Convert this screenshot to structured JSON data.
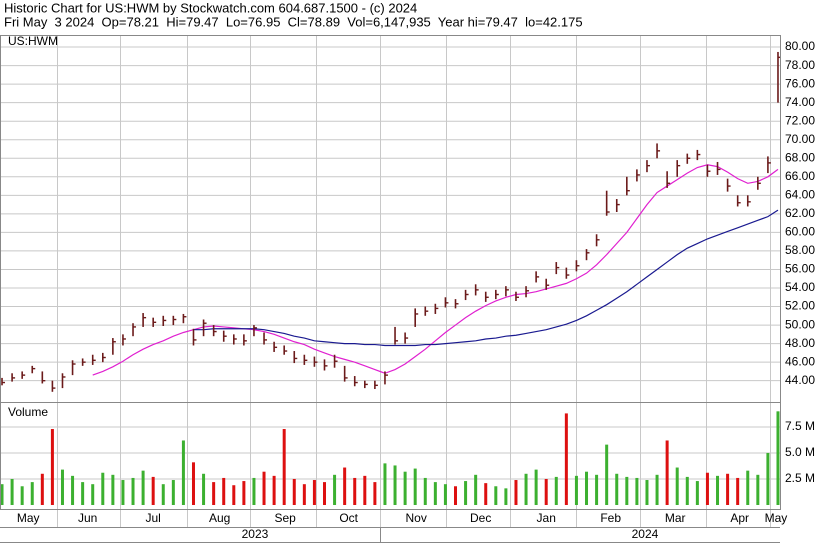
{
  "chart_data": [
    {
      "type": "ohlc",
      "title": "Historic Chart for US:HWM by Stockwatch.com 604.687.1500 - (c) 2024",
      "subtitle": "Fri May  3 2024  Op=78.21  Hi=79.47  Lo=76.95  Cl=78.89  Vol=6,147,935  Year hi=79.47  lo=42.175",
      "label": "US:HWM",
      "color": "#6b1a1a",
      "xlim": [
        -0.2,
        77.2
      ],
      "xgrid": [
        5.5,
        11.7,
        18.4,
        24.6,
        31.2,
        37.5,
        44.1,
        50.4,
        57,
        63.3,
        69.9,
        76.2
      ],
      "ylim": [
        41.7,
        81.3
      ],
      "yticks": [
        {
          "value": 44,
          "label": "44.00"
        },
        {
          "value": 46,
          "label": "46.00"
        },
        {
          "value": 48,
          "label": "48.00"
        },
        {
          "value": 50,
          "label": "50.00"
        },
        {
          "value": 52,
          "label": "52.00"
        },
        {
          "value": 54,
          "label": "54.00"
        },
        {
          "value": 56,
          "label": "56.00"
        },
        {
          "value": 58,
          "label": "58.00"
        },
        {
          "value": 60,
          "label": "60.00"
        },
        {
          "value": 62,
          "label": "62.00"
        },
        {
          "value": 64,
          "label": "64.00"
        },
        {
          "value": 66,
          "label": "66.00"
        },
        {
          "value": 68,
          "label": "68.00"
        },
        {
          "value": 70,
          "label": "70.00"
        },
        {
          "value": 72,
          "label": "72.00"
        },
        {
          "value": 74,
          "label": "74.00"
        },
        {
          "value": 76,
          "label": "76.00"
        },
        {
          "value": 78,
          "label": "78.00"
        },
        {
          "value": 80,
          "label": "80.00"
        }
      ],
      "high": [
        44.3,
        44.8,
        45.0,
        45.6,
        45.0,
        44.0,
        44.8,
        46.2,
        46.4,
        46.8,
        47.0,
        48.6,
        49.0,
        50.2,
        51.3,
        50.8,
        51.0,
        51.0,
        51.2,
        49.6,
        50.6,
        50.0,
        49.4,
        49.0,
        49.0,
        50.0,
        49.2,
        48.2,
        47.8,
        47.2,
        46.8,
        46.6,
        46.3,
        46.8,
        45.6,
        44.5,
        44.0,
        44.0,
        45.0,
        49.8,
        49.2,
        51.8,
        52.0,
        52.3,
        53.0,
        52.8,
        53.8,
        54.4,
        53.6,
        53.8,
        54.2,
        53.6,
        54.2,
        55.8,
        55.0,
        56.8,
        56.2,
        57.0,
        58.2,
        59.8,
        64.5,
        63.6,
        66.0,
        66.8,
        67.8,
        69.6,
        66.6,
        67.8,
        68.5,
        68.9,
        67.3,
        67.6,
        65.8,
        64.0,
        64.0,
        66.0,
        68.2,
        79.47
      ],
      "low": [
        43.5,
        43.9,
        44.2,
        44.8,
        43.7,
        42.8,
        43.2,
        44.6,
        45.6,
        45.7,
        46.0,
        46.8,
        47.8,
        48.8,
        49.8,
        49.8,
        49.9,
        50.0,
        50.2,
        47.8,
        48.8,
        48.8,
        48.2,
        47.9,
        47.8,
        48.8,
        47.9,
        47.1,
        46.8,
        45.9,
        45.7,
        45.5,
        45.1,
        45.4,
        43.9,
        43.4,
        43.2,
        43.1,
        43.6,
        47.9,
        48.0,
        49.8,
        51.0,
        51.2,
        51.9,
        51.8,
        52.7,
        53.2,
        52.5,
        52.8,
        53.1,
        52.6,
        53.0,
        54.6,
        53.8,
        55.5,
        55.0,
        55.8,
        57.0,
        58.5,
        61.8,
        62.2,
        64.0,
        65.5,
        66.5,
        68.0,
        64.8,
        66.0,
        67.4,
        67.8,
        66.0,
        66.2,
        64.4,
        62.8,
        62.8,
        64.6,
        66.4,
        74.0
      ],
      "close": [
        43.8,
        44.3,
        44.6,
        45.3,
        44.0,
        43.2,
        44.4,
        45.8,
        46.0,
        46.2,
        46.5,
        48.2,
        48.5,
        49.8,
        50.8,
        50.3,
        50.5,
        50.6,
        50.9,
        48.4,
        50.2,
        49.3,
        48.8,
        48.5,
        48.3,
        49.7,
        48.4,
        47.6,
        47.2,
        46.4,
        46.2,
        46.0,
        45.6,
        46.1,
        44.3,
        43.8,
        43.6,
        43.5,
        44.6,
        48.3,
        48.6,
        51.2,
        51.5,
        51.8,
        52.4,
        52.3,
        53.3,
        53.8,
        53.0,
        53.3,
        53.8,
        53.0,
        53.7,
        55.2,
        54.3,
        56.2,
        55.4,
        56.4,
        57.8,
        59.2,
        62.2,
        63.0,
        64.5,
        66.2,
        67.2,
        68.8,
        65.3,
        67.2,
        68.0,
        68.4,
        66.6,
        66.8,
        65.0,
        63.2,
        63.3,
        65.3,
        67.5,
        78.89
      ],
      "averages": [
        {
          "color": "#e020d0",
          "values": [
            null,
            null,
            null,
            null,
            null,
            null,
            null,
            null,
            null,
            44.6,
            45.0,
            45.5,
            46.1,
            46.8,
            47.4,
            47.9,
            48.3,
            48.8,
            49.2,
            49.5,
            49.8,
            49.9,
            49.8,
            49.7,
            49.6,
            49.5,
            49.3,
            49.0,
            48.6,
            48.2,
            47.9,
            47.4,
            47.0,
            46.6,
            46.3,
            46.0,
            45.6,
            45.2,
            44.8,
            45.2,
            45.8,
            46.6,
            47.4,
            48.3,
            49.2,
            50.0,
            50.8,
            51.5,
            52.1,
            52.6,
            53.0,
            53.3,
            53.4,
            53.6,
            53.9,
            54.2,
            54.5,
            55.0,
            55.6,
            56.5,
            57.6,
            58.8,
            60.0,
            61.5,
            63.0,
            64.3,
            65.0,
            65.7,
            66.4,
            67.0,
            67.3,
            67.1,
            66.5,
            65.8,
            65.3,
            65.5,
            66.0,
            66.8
          ]
        },
        {
          "color": "#1a1a90",
          "values": [
            null,
            null,
            null,
            null,
            null,
            null,
            null,
            null,
            null,
            null,
            null,
            null,
            null,
            null,
            null,
            null,
            null,
            null,
            null,
            49.5,
            49.5,
            49.6,
            49.6,
            49.6,
            49.6,
            49.6,
            49.5,
            49.3,
            49.1,
            48.8,
            48.6,
            48.3,
            48.2,
            48.1,
            48.0,
            48.0,
            47.9,
            47.9,
            47.8,
            47.8,
            47.8,
            47.8,
            47.9,
            47.9,
            48.0,
            48.1,
            48.2,
            48.3,
            48.5,
            48.6,
            48.8,
            48.9,
            49.1,
            49.3,
            49.5,
            49.8,
            50.1,
            50.5,
            51.0,
            51.6,
            52.2,
            52.9,
            53.6,
            54.4,
            55.2,
            56.0,
            56.8,
            57.6,
            58.3,
            58.8,
            59.3,
            59.7,
            60.1,
            60.5,
            60.9,
            61.3,
            61.7,
            62.4
          ]
        }
      ]
    },
    {
      "type": "bar",
      "label": "Volume",
      "up_color": "#3cb030",
      "down_color": "#dd1010",
      "ylim": [
        0,
        9.8
      ],
      "yticks": [
        {
          "value": 2.5,
          "label": "2.5 M"
        },
        {
          "value": 5,
          "label": "5.0 M"
        },
        {
          "value": 7.5,
          "label": "7.5 M"
        }
      ],
      "values": [
        2.0,
        2.5,
        1.8,
        2.2,
        3.0,
        7.3,
        3.4,
        2.8,
        2.2,
        2.0,
        3.1,
        2.9,
        2.4,
        2.6,
        3.3,
        2.7,
        2.0,
        2.4,
        6.2,
        4.1,
        3.0,
        2.2,
        2.6,
        1.9,
        2.3,
        2.6,
        3.2,
        2.8,
        7.3,
        2.5,
        2.0,
        2.4,
        2.2,
        2.9,
        3.6,
        2.6,
        2.8,
        2.2,
        4.0,
        3.8,
        3.2,
        3.5,
        2.6,
        2.2,
        2.0,
        1.8,
        2.3,
        2.9,
        2.1,
        1.8,
        1.6,
        2.4,
        3.0,
        3.4,
        2.5,
        2.7,
        8.8,
        2.8,
        3.2,
        2.9,
        5.8,
        3.0,
        2.7,
        2.6,
        2.4,
        2.9,
        6.2,
        3.6,
        2.7,
        2.3,
        3.1,
        2.8,
        3.0,
        2.6,
        3.3,
        2.9,
        5.0,
        9.0
      ],
      "xticks": [
        {
          "value": 2.6,
          "label": "May"
        },
        {
          "value": 8.5,
          "label": "Jun"
        },
        {
          "value": 15,
          "label": "Jul"
        },
        {
          "value": 21.6,
          "label": "Aug"
        },
        {
          "value": 28.1,
          "label": "Sep"
        },
        {
          "value": 34.4,
          "label": "Oct"
        },
        {
          "value": 41.1,
          "label": "Nov"
        },
        {
          "value": 47.5,
          "label": "Dec"
        },
        {
          "value": 54,
          "label": "Jan"
        },
        {
          "value": 60.4,
          "label": "Feb"
        },
        {
          "value": 66.8,
          "label": "Mar"
        },
        {
          "value": 73.2,
          "label": "Apr"
        },
        {
          "value": 76.8,
          "label": "May"
        }
      ],
      "years": [
        {
          "value": 25.1,
          "label": "2023"
        },
        {
          "value": 63.8,
          "label": "2024"
        }
      ]
    }
  ]
}
